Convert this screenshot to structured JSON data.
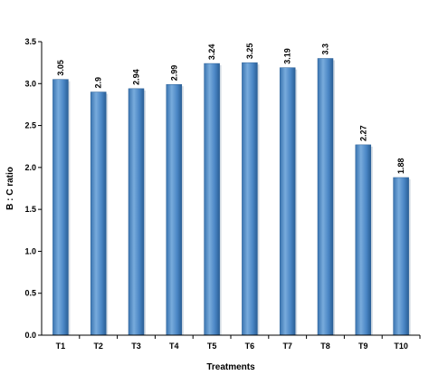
{
  "chart_data": {
    "type": "bar",
    "title": "",
    "xlabel": "Treatments",
    "ylabel": "B : C ratio",
    "categories": [
      "T1",
      "T2",
      "T3",
      "T4",
      "T5",
      "T6",
      "T7",
      "T8",
      "T9",
      "T10"
    ],
    "values": [
      3.05,
      2.9,
      2.94,
      2.99,
      3.24,
      3.25,
      3.19,
      3.3,
      2.27,
      1.88
    ],
    "data_labels": [
      "3.05",
      "2.9",
      "2.94",
      "2.99",
      "3.24",
      "3.25",
      "3.19",
      "3.3",
      "2.27",
      "1.88"
    ],
    "yticks": [
      "0.0",
      "0.5",
      "1.0",
      "1.5",
      "2.0",
      "2.5",
      "3.0",
      "3.5"
    ],
    "ylim": [
      0,
      3.5
    ],
    "grid": false,
    "legend": "none",
    "colors": {
      "bar_light": "#6fa3d8",
      "bar_mid": "#3f7fc1",
      "bar_dark": "#2a5f96",
      "axis": "#000000"
    }
  }
}
